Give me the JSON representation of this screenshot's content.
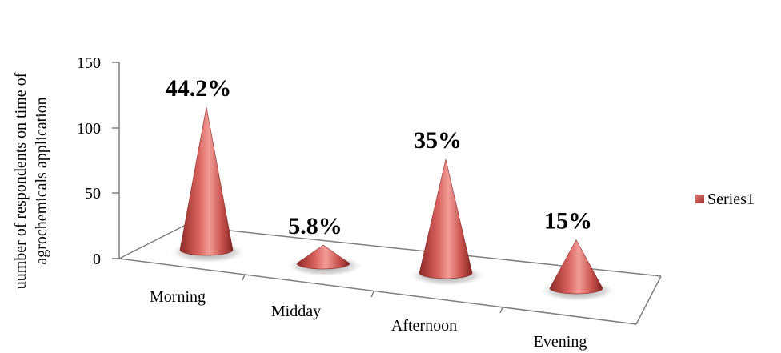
{
  "chart_data": {
    "type": "bar",
    "style": "3d-cone",
    "categories": [
      "Morning",
      "Midday",
      "Afternoon",
      "Evening"
    ],
    "series": [
      {
        "name": "Series1",
        "values": [
          109,
          14,
          87,
          37
        ],
        "color": "#c0504d"
      }
    ],
    "data_labels": [
      "44.2%",
      "5.8%",
      "35%",
      "15%"
    ],
    "ylabel_lines": [
      "uumber of respondents on  time of",
      "agrochemicals application"
    ],
    "yticks": [
      "150",
      "100",
      "50",
      "0"
    ],
    "ylim": [
      0,
      150
    ],
    "grid": false,
    "legend_position": "right"
  }
}
